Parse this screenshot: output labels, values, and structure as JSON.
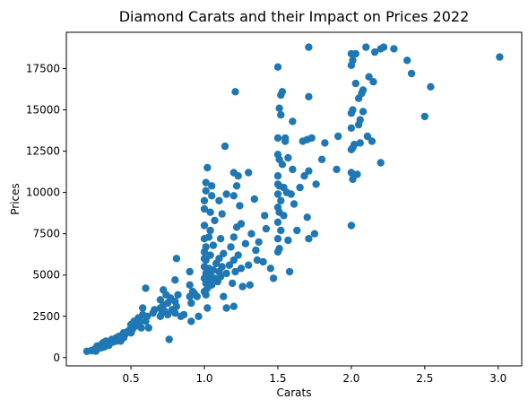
{
  "chart_data": {
    "type": "scatter",
    "title": "Diamond Carats and their Impact on Prices 2022",
    "xlabel": "Carats",
    "ylabel": "Prices",
    "xlim": [
      0.06,
      3.16
    ],
    "ylim": [
      -500,
      19700
    ],
    "xticks": [
      "0.5",
      "1.0",
      "1.5",
      "2.0",
      "2.5",
      "3.0"
    ],
    "yticks": [
      "0",
      "2500",
      "5000",
      "7500",
      "10000",
      "12500",
      "15000",
      "17500"
    ],
    "xtick_values": [
      0.5,
      1.0,
      1.5,
      2.0,
      2.5,
      3.0
    ],
    "ytick_values": [
      0,
      2500,
      5000,
      7500,
      10000,
      12500,
      15000,
      17500
    ],
    "marker_color": "#1f77b4",
    "grid": false,
    "legend": "none",
    "series": [
      {
        "points": [
          [
            0.2,
            380
          ],
          [
            0.23,
            420
          ],
          [
            0.25,
            500
          ],
          [
            0.26,
            390
          ],
          [
            0.27,
            700
          ],
          [
            0.28,
            560
          ],
          [
            0.3,
            600
          ],
          [
            0.3,
            800
          ],
          [
            0.31,
            700
          ],
          [
            0.31,
            900
          ],
          [
            0.32,
            650
          ],
          [
            0.33,
            1000
          ],
          [
            0.34,
            800
          ],
          [
            0.35,
            750
          ],
          [
            0.36,
            900
          ],
          [
            0.37,
            1100
          ],
          [
            0.38,
            950
          ],
          [
            0.4,
            1000
          ],
          [
            0.4,
            1200
          ],
          [
            0.41,
            1100
          ],
          [
            0.42,
            1300
          ],
          [
            0.43,
            1000
          ],
          [
            0.45,
            1200
          ],
          [
            0.45,
            1500
          ],
          [
            0.46,
            1400
          ],
          [
            0.48,
            1600
          ],
          [
            0.5,
            1500
          ],
          [
            0.5,
            1800
          ],
          [
            0.5,
            2000
          ],
          [
            0.51,
            1700
          ],
          [
            0.52,
            2200
          ],
          [
            0.53,
            1900
          ],
          [
            0.55,
            2000
          ],
          [
            0.55,
            2400
          ],
          [
            0.56,
            2200
          ],
          [
            0.57,
            1800
          ],
          [
            0.58,
            2600
          ],
          [
            0.58,
            3000
          ],
          [
            0.6,
            2200
          ],
          [
            0.6,
            4200
          ],
          [
            0.61,
            2500
          ],
          [
            0.62,
            1800
          ],
          [
            0.65,
            2700
          ],
          [
            0.66,
            2900
          ],
          [
            0.7,
            2500
          ],
          [
            0.7,
            3000
          ],
          [
            0.7,
            3500
          ],
          [
            0.71,
            2700
          ],
          [
            0.72,
            3200
          ],
          [
            0.72,
            4100
          ],
          [
            0.73,
            2800
          ],
          [
            0.74,
            3800
          ],
          [
            0.75,
            2600
          ],
          [
            0.75,
            3300
          ],
          [
            0.76,
            1100
          ],
          [
            0.77,
            3600
          ],
          [
            0.78,
            2900
          ],
          [
            0.8,
            2700
          ],
          [
            0.8,
            3400
          ],
          [
            0.8,
            4700
          ],
          [
            0.81,
            3100
          ],
          [
            0.81,
            6000
          ],
          [
            0.82,
            3800
          ],
          [
            0.84,
            2500
          ],
          [
            0.86,
            2600
          ],
          [
            0.9,
            3700
          ],
          [
            0.9,
            4400
          ],
          [
            0.9,
            5200
          ],
          [
            0.91,
            2200
          ],
          [
            0.91,
            3300
          ],
          [
            0.92,
            4000
          ],
          [
            0.93,
            3900
          ],
          [
            0.95,
            3700
          ],
          [
            0.96,
            2500
          ],
          [
            1.0,
            4000
          ],
          [
            1.0,
            4800
          ],
          [
            1.0,
            5500
          ],
          [
            1.0,
            6000
          ],
          [
            1.0,
            6400
          ],
          [
            1.0,
            7200
          ],
          [
            1.0,
            8000
          ],
          [
            1.0,
            9000
          ],
          [
            1.0,
            9500
          ],
          [
            1.01,
            3800
          ],
          [
            1.01,
            4500
          ],
          [
            1.01,
            5100
          ],
          [
            1.01,
            5900
          ],
          [
            1.01,
            6700
          ],
          [
            1.01,
            10100
          ],
          [
            1.01,
            10600
          ],
          [
            1.02,
            3000
          ],
          [
            1.02,
            4200
          ],
          [
            1.02,
            11500
          ],
          [
            1.03,
            4700
          ],
          [
            1.03,
            5400
          ],
          [
            1.03,
            7300
          ],
          [
            1.04,
            5000
          ],
          [
            1.04,
            6200
          ],
          [
            1.04,
            7700
          ],
          [
            1.04,
            8800
          ],
          [
            1.05,
            4400
          ],
          [
            1.05,
            9800
          ],
          [
            1.05,
            10400
          ],
          [
            1.06,
            5300
          ],
          [
            1.06,
            6800
          ],
          [
            1.07,
            4800
          ],
          [
            1.07,
            8300
          ],
          [
            1.08,
            5700
          ],
          [
            1.09,
            4600
          ],
          [
            1.1,
            5200
          ],
          [
            1.1,
            6000
          ],
          [
            1.1,
            9500
          ],
          [
            1.11,
            4900
          ],
          [
            1.11,
            7200
          ],
          [
            1.12,
            5500
          ],
          [
            1.12,
            8700
          ],
          [
            1.13,
            3700
          ],
          [
            1.13,
            6300
          ],
          [
            1.14,
            12800
          ],
          [
            1.15,
            3000
          ],
          [
            1.15,
            5100
          ],
          [
            1.15,
            9900
          ],
          [
            1.17,
            5600
          ],
          [
            1.18,
            6700
          ],
          [
            1.19,
            4500
          ],
          [
            1.2,
            3100
          ],
          [
            1.2,
            5900
          ],
          [
            1.2,
            7300
          ],
          [
            1.2,
            9800
          ],
          [
            1.2,
            11200
          ],
          [
            1.21,
            5200
          ],
          [
            1.21,
            16100
          ],
          [
            1.22,
            7900
          ],
          [
            1.22,
            10400
          ],
          [
            1.23,
            6200
          ],
          [
            1.23,
            11000
          ],
          [
            1.24,
            9200
          ],
          [
            1.25,
            5400
          ],
          [
            1.25,
            8100
          ],
          [
            1.26,
            4300
          ],
          [
            1.28,
            6900
          ],
          [
            1.3,
            5600
          ],
          [
            1.3,
            11200
          ],
          [
            1.31,
            4400
          ],
          [
            1.32,
            7500
          ],
          [
            1.34,
            9600
          ],
          [
            1.35,
            6500
          ],
          [
            1.36,
            5900
          ],
          [
            1.37,
            7000
          ],
          [
            1.4,
            5800
          ],
          [
            1.41,
            8600
          ],
          [
            1.42,
            7800
          ],
          [
            1.45,
            5400
          ],
          [
            1.47,
            4800
          ],
          [
            1.5,
            6400
          ],
          [
            1.5,
            7200
          ],
          [
            1.5,
            8200
          ],
          [
            1.5,
            9100
          ],
          [
            1.5,
            9900
          ],
          [
            1.5,
            10500
          ],
          [
            1.5,
            11000
          ],
          [
            1.5,
            12300
          ],
          [
            1.5,
            13300
          ],
          [
            1.5,
            17600
          ],
          [
            1.51,
            6600
          ],
          [
            1.51,
            8800
          ],
          [
            1.51,
            10400
          ],
          [
            1.51,
            12000
          ],
          [
            1.51,
            15100
          ],
          [
            1.52,
            7700
          ],
          [
            1.52,
            9500
          ],
          [
            1.52,
            14700
          ],
          [
            1.52,
            15900
          ],
          [
            1.53,
            16100
          ],
          [
            1.53,
            11700
          ],
          [
            1.54,
            8600
          ],
          [
            1.54,
            10300
          ],
          [
            1.55,
            13100
          ],
          [
            1.55,
            13300
          ],
          [
            1.56,
            10000
          ],
          [
            1.57,
            7100
          ],
          [
            1.57,
            12100
          ],
          [
            1.58,
            5200
          ],
          [
            1.59,
            9900
          ],
          [
            1.6,
            11400
          ],
          [
            1.6,
            14300
          ],
          [
            1.61,
            9300
          ],
          [
            1.63,
            7700
          ],
          [
            1.65,
            10300
          ],
          [
            1.67,
            13100
          ],
          [
            1.68,
            11000
          ],
          [
            1.7,
            8500
          ],
          [
            1.7,
            13200
          ],
          [
            1.71,
            7200
          ],
          [
            1.71,
            11300
          ],
          [
            1.71,
            15800
          ],
          [
            1.71,
            18800
          ],
          [
            1.73,
            13300
          ],
          [
            1.75,
            7500
          ],
          [
            1.76,
            10500
          ],
          [
            1.8,
            12000
          ],
          [
            1.82,
            13000
          ],
          [
            1.9,
            11400
          ],
          [
            1.91,
            13400
          ],
          [
            2.0,
            8000
          ],
          [
            2.0,
            11200
          ],
          [
            2.0,
            12600
          ],
          [
            2.0,
            13900
          ],
          [
            2.0,
            14800
          ],
          [
            2.0,
            17700
          ],
          [
            2.0,
            18400
          ],
          [
            2.01,
            10800
          ],
          [
            2.01,
            12700
          ],
          [
            2.01,
            15000
          ],
          [
            2.01,
            18000
          ],
          [
            2.02,
            12900
          ],
          [
            2.03,
            16600
          ],
          [
            2.03,
            18400
          ],
          [
            2.04,
            11100
          ],
          [
            2.05,
            14100
          ],
          [
            2.05,
            15700
          ],
          [
            2.06,
            13000
          ],
          [
            2.06,
            14400
          ],
          [
            2.07,
            16000
          ],
          [
            2.08,
            14900
          ],
          [
            2.08,
            16200
          ],
          [
            2.1,
            18800
          ],
          [
            2.11,
            13400
          ],
          [
            2.12,
            17000
          ],
          [
            2.14,
            13100
          ],
          [
            2.15,
            16700
          ],
          [
            2.16,
            18500
          ],
          [
            2.2,
            11800
          ],
          [
            2.2,
            18700
          ],
          [
            2.22,
            18800
          ],
          [
            2.29,
            18700
          ],
          [
            2.38,
            18000
          ],
          [
            2.41,
            17200
          ],
          [
            2.5,
            14600
          ],
          [
            2.54,
            16400
          ],
          [
            3.01,
            18200
          ]
        ]
      }
    ]
  }
}
